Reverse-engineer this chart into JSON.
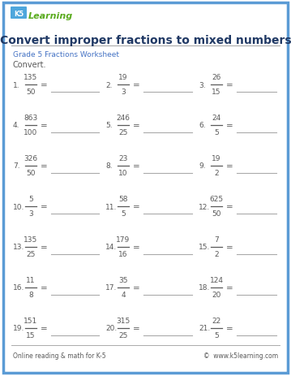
{
  "title": "Convert improper fractions to mixed numbers",
  "subtitle": "Grade 5 Fractions Worksheet",
  "convert_label": "Convert.",
  "footer_left": "Online reading & math for K-5",
  "footer_right": "©  www.k5learning.com",
  "border_color": "#5b9bd5",
  "title_color": "#1f3864",
  "subtitle_color": "#4472c4",
  "text_color": "#595959",
  "line_color": "#aaaaaa",
  "frac_bar_color": "#595959",
  "problems": [
    {
      "num": 1,
      "n": 135,
      "d": 50
    },
    {
      "num": 2,
      "n": 19,
      "d": 3
    },
    {
      "num": 3,
      "n": 26,
      "d": 15
    },
    {
      "num": 4,
      "n": 863,
      "d": 100
    },
    {
      "num": 5,
      "n": 246,
      "d": 25
    },
    {
      "num": 6,
      "n": 24,
      "d": 5
    },
    {
      "num": 7,
      "n": 326,
      "d": 50
    },
    {
      "num": 8,
      "n": 23,
      "d": 10
    },
    {
      "num": 9,
      "n": 19,
      "d": 2
    },
    {
      "num": 10,
      "n": 5,
      "d": 3
    },
    {
      "num": 11,
      "n": 58,
      "d": 5
    },
    {
      "num": 12,
      "n": 625,
      "d": 50
    },
    {
      "num": 13,
      "n": 135,
      "d": 25
    },
    {
      "num": 14,
      "n": 179,
      "d": 16
    },
    {
      "num": 15,
      "n": 7,
      "d": 2
    },
    {
      "num": 16,
      "n": 11,
      "d": 8
    },
    {
      "num": 17,
      "n": 35,
      "d": 4
    },
    {
      "num": 18,
      "n": 124,
      "d": 20
    },
    {
      "num": 19,
      "n": 151,
      "d": 15
    },
    {
      "num": 20,
      "n": 315,
      "d": 25
    },
    {
      "num": 21,
      "n": 22,
      "d": 5
    }
  ],
  "bg_color": "#ffffff"
}
